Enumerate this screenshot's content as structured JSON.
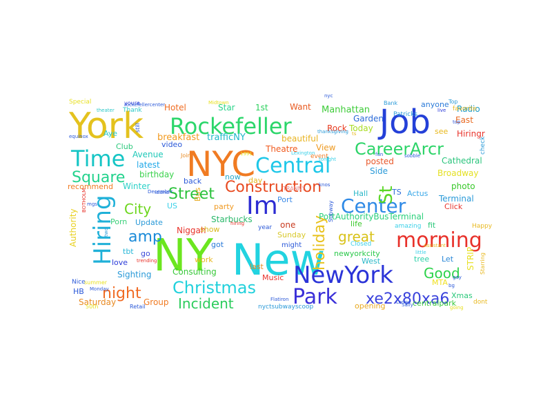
{
  "words": [
    {
      "text": "New",
      "color": "#22d3e0"
    },
    {
      "text": "NY",
      "color": "#6ce61f"
    },
    {
      "text": "NYC",
      "color": "#f07b22"
    },
    {
      "text": "York",
      "color": "#e4c21e"
    },
    {
      "text": "Job",
      "color": "#2440d8"
    },
    {
      "text": "Rockefeller",
      "color": "#2bd66a"
    },
    {
      "text": "Central",
      "color": "#1ec7e8"
    },
    {
      "text": "NewYork",
      "color": "#2b34d8"
    },
    {
      "text": "Im",
      "color": "#2c2bd2"
    },
    {
      "text": "Park",
      "color": "#3a2fd8"
    },
    {
      "text": "Center",
      "color": "#2f8ae6"
    },
    {
      "text": "Time",
      "color": "#16c5c5"
    },
    {
      "text": "CareerArcr",
      "color": "#2cd468"
    },
    {
      "text": "Christmas",
      "color": "#22d1dc"
    },
    {
      "text": "morning",
      "color": "#e8312a"
    },
    {
      "text": "Hiring",
      "color": "#1fb0d8"
    },
    {
      "text": "Construction",
      "color": "#e84a20"
    },
    {
      "text": "Square",
      "color": "#22d28c"
    },
    {
      "text": "Street",
      "color": "#2bc23c"
    },
    {
      "text": "St",
      "color": "#5bd626"
    },
    {
      "text": "Incident",
      "color": "#2ccc5c"
    },
    {
      "text": "xe2x80xa6",
      "color": "#3a42dc"
    },
    {
      "text": "night",
      "color": "#f06a22"
    },
    {
      "text": "holiday",
      "color": "#e8c21e"
    },
    {
      "text": "great",
      "color": "#d8c218"
    },
    {
      "text": "City",
      "color": "#6cd61c"
    },
    {
      "text": "amp",
      "color": "#1a8ad8"
    },
    {
      "text": "Good",
      "color": "#2cd24a"
    },
    {
      "text": "Theatre",
      "color": "#f05a1e"
    },
    {
      "text": "trafficNY",
      "color": "#1db8c8"
    },
    {
      "text": "breakfast",
      "color": "#f29a1e"
    },
    {
      "text": "Avenue",
      "color": "#1ec8b8"
    },
    {
      "text": "latest",
      "color": "#20a8e8"
    },
    {
      "text": "birthday",
      "color": "#3ad24c"
    },
    {
      "text": "Manhattan",
      "color": "#3fcc3a"
    },
    {
      "text": "Hotel",
      "color": "#f06a1e"
    },
    {
      "text": "Rock",
      "color": "#e83a1e"
    },
    {
      "text": "Today",
      "color": "#a8dc22"
    },
    {
      "text": "Garden",
      "color": "#2a6ad8"
    },
    {
      "text": "Radio",
      "color": "#1a9ac8"
    },
    {
      "text": "anyone",
      "color": "#2a7ad8"
    },
    {
      "text": "East",
      "color": "#e86a22"
    },
    {
      "text": "Star",
      "color": "#2cd48a"
    },
    {
      "text": "1st",
      "color": "#2ad05c"
    },
    {
      "text": "Want",
      "color": "#e85a20"
    },
    {
      "text": "Hiringr",
      "color": "#e8322a"
    },
    {
      "text": "video",
      "color": "#2a58d8"
    },
    {
      "text": "beautiful",
      "color": "#e8b21e"
    },
    {
      "text": "View",
      "color": "#ee9a22"
    },
    {
      "text": "posted",
      "color": "#e8582a"
    },
    {
      "text": "Cathedral",
      "color": "#2ac47c"
    },
    {
      "text": "Broadway",
      "color": "#e4e022"
    },
    {
      "text": "Winter",
      "color": "#2ad0c8"
    },
    {
      "text": "Side",
      "color": "#2a9ad8"
    },
    {
      "text": "Actus",
      "color": "#3aa8e8"
    },
    {
      "text": "photo",
      "color": "#38c82a"
    },
    {
      "text": "TS",
      "color": "#2a6ad8"
    },
    {
      "text": "Hall",
      "color": "#2ab8c8"
    },
    {
      "text": "Terminal",
      "color": "#2a9ad8"
    },
    {
      "text": "Port",
      "color": "#3a8ae8"
    },
    {
      "text": "PortAuthorityBusTerminal",
      "color": "#2ad07a"
    },
    {
      "text": "Starbucks",
      "color": "#2ab86a"
    },
    {
      "text": "party",
      "color": "#f09a22"
    },
    {
      "text": "Update",
      "color": "#2a9ad8"
    },
    {
      "text": "Porn",
      "color": "#3ad07a"
    },
    {
      "text": "Niggah",
      "color": "#e8322a"
    },
    {
      "text": "show",
      "color": "#d8b81e"
    },
    {
      "text": "got",
      "color": "#2a7ad8"
    },
    {
      "text": "one",
      "color": "#c83a1e"
    },
    {
      "text": "Sunday",
      "color": "#d8c82a"
    },
    {
      "text": "life",
      "color": "#3ac82a"
    },
    {
      "text": "Click",
      "color": "#e8322a"
    },
    {
      "text": "fit",
      "color": "#2ac87a"
    },
    {
      "text": "back",
      "color": "#2a58d8"
    },
    {
      "text": "now",
      "color": "#28a8c8"
    },
    {
      "text": "day",
      "color": "#e8b81e"
    },
    {
      "text": "tbt",
      "color": "#2ab8d8"
    },
    {
      "text": "go",
      "color": "#3a48d8"
    },
    {
      "text": "love",
      "color": "#2a3ad8"
    },
    {
      "text": "work",
      "color": "#e8b81e"
    },
    {
      "text": "Consulting",
      "color": "#38c83a"
    },
    {
      "text": "last",
      "color": "#e88a22"
    },
    {
      "text": "Music",
      "color": "#e8322a"
    },
    {
      "text": "newyorkcity",
      "color": "#2ac84a"
    },
    {
      "text": "tree",
      "color": "#2ad0a8"
    },
    {
      "text": "Let",
      "color": "#2a88d8"
    },
    {
      "text": "West",
      "color": "#2ab8c8"
    },
    {
      "text": "Sighting",
      "color": "#2a9ad8"
    },
    {
      "text": "Saturday",
      "color": "#e88a22"
    },
    {
      "text": "Group",
      "color": "#f07a22"
    },
    {
      "text": "opening",
      "color": "#e8a81e"
    },
    {
      "text": "centralpark",
      "color": "#38c83a"
    },
    {
      "text": "Xmas",
      "color": "#2ac87a"
    },
    {
      "text": "MTA",
      "color": "#f0e022"
    },
    {
      "text": "STRIP",
      "color": "#e8e022"
    },
    {
      "text": "Authority",
      "color": "#e8d01e"
    },
    {
      "text": "Bus",
      "color": "#e8a81e"
    },
    {
      "text": "US",
      "color": "#3ad0e8"
    },
    {
      "text": "Club",
      "color": "#2ac87a"
    },
    {
      "text": "Aye",
      "color": "#2ac8c8"
    },
    {
      "text": "recommend",
      "color": "#f07a22"
    },
    {
      "text": "Special",
      "color": "#e8e022"
    },
    {
      "text": "youre",
      "color": "#2a3ad8"
    },
    {
      "text": "Thank",
      "color": "#2ac8c8"
    },
    {
      "text": "HB",
      "color": "#2a58d8"
    },
    {
      "text": "Nice",
      "color": "#2a58d8"
    },
    {
      "text": "see",
      "color": "#e8b81e"
    },
    {
      "text": "Patricks",
      "color": "#2a9ad8"
    },
    {
      "text": "might",
      "color": "#2a58d8"
    },
    {
      "text": "Top",
      "color": "#2a9ad8"
    },
    {
      "text": "Happy",
      "color": "#e8b81e"
    },
    {
      "text": "amazing",
      "color": "#3ad0e8"
    },
    {
      "text": "Closed",
      "color": "#3ad0e8"
    },
    {
      "text": "favorite",
      "color": "#e8b81e"
    },
    {
      "text": "Bank",
      "color": "#2a9ad8"
    },
    {
      "text": "check",
      "color": "#2a9ad8"
    },
    {
      "text": "dont",
      "color": "#e8b81e"
    },
    {
      "text": "Starring",
      "color": "#e8b81e"
    },
    {
      "text": "still",
      "color": "#2a58d8"
    },
    {
      "text": "Join",
      "color": "#e88a22"
    },
    {
      "text": "event",
      "color": "#f07a22"
    },
    {
      "text": "year",
      "color": "#2a58d8"
    },
    {
      "text": "Retail",
      "color": "#2a58d8"
    },
    {
      "text": "Subway",
      "color": "#2a58d8"
    },
    {
      "text": "summer",
      "color": "#e8e022"
    },
    {
      "text": "50th",
      "color": "#e8e022"
    },
    {
      "text": "rockefellercenter",
      "color": "#2a58d8"
    },
    {
      "text": "nyctsubwayscoop",
      "color": "#2a9ad8"
    },
    {
      "text": "TRANNY",
      "color": "#e88a8a"
    },
    {
      "text": "Lexington",
      "color": "#3ad0e8"
    },
    {
      "text": "Monday",
      "color": "#2a58d8"
    },
    {
      "text": "two",
      "color": "#2a9ad8"
    },
    {
      "text": "equinox",
      "color": "#2a58d8"
    },
    {
      "text": "theater",
      "color": "#2ac8c8"
    },
    {
      "text": "little",
      "color": "#3ad0e8"
    },
    {
      "text": "live",
      "color": "#2a3ad8"
    },
    {
      "text": "tonight",
      "color": "#3ad0e8"
    },
    {
      "text": "December",
      "color": "#2a58d8"
    },
    {
      "text": "Island",
      "color": "#2a58d8"
    },
    {
      "text": "Assistant",
      "color": "#e8b81e"
    },
    {
      "text": "trending",
      "color": "#e8322a"
    },
    {
      "text": "knos",
      "color": "#2a58d8"
    },
    {
      "text": "hiring",
      "color": "#e8322a"
    },
    {
      "text": "BOTHOLM",
      "color": "#e8322a"
    },
    {
      "text": "going",
      "color": "#e8e022"
    },
    {
      "text": "1991",
      "color": "#e8e022"
    },
    {
      "text": "Lodge",
      "color": "#2a58d8"
    },
    {
      "text": "fun",
      "color": "#2a58d8"
    },
    {
      "text": "ts",
      "color": "#e8b81e"
    },
    {
      "text": "thanksgiving",
      "color": "#2a9ad8"
    },
    {
      "text": "Sally",
      "color": "#2a58d8"
    },
    {
      "text": "Flatiron",
      "color": "#2a58d8"
    },
    {
      "text": "gay",
      "color": "#2a58d8"
    },
    {
      "text": "bg",
      "color": "#2a58d8"
    },
    {
      "text": "Midtown",
      "color": "#e8e022"
    },
    {
      "text": "nyc",
      "color": "#2a58d8"
    },
    {
      "text": "sobble",
      "color": "#2a58d8"
    },
    {
      "text": "mgs",
      "color": "#2a58d8"
    },
    {
      "text": "top",
      "color": "#2a58d8"
    },
    {
      "text": "Jersey",
      "color": "#2a58d8"
    }
  ]
}
